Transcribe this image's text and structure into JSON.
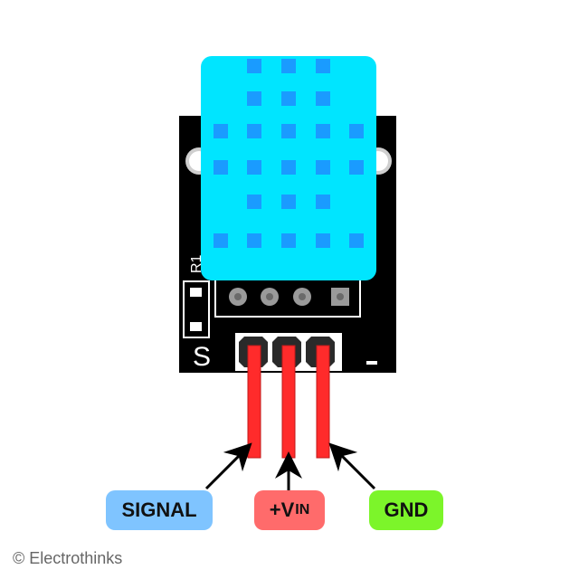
{
  "board": {
    "silk_resistor": "R1",
    "silk_signal": "S",
    "silk_ground": "-"
  },
  "labels": {
    "signal": "SIGNAL",
    "vin_prefix": "+V",
    "vin_sub": "IN",
    "gnd": "GND"
  },
  "footer": {
    "copyright": "© Electrothinks"
  },
  "colors": {
    "sensor_body": "#00e5ff",
    "sensor_holes": "#1a9bff",
    "pcb": "#000000",
    "wires": "#ff2b2b",
    "signal_label_bg": "#7fc4ff",
    "vin_label_bg": "#ff6b6b",
    "gnd_label_bg": "#7cf52a"
  }
}
